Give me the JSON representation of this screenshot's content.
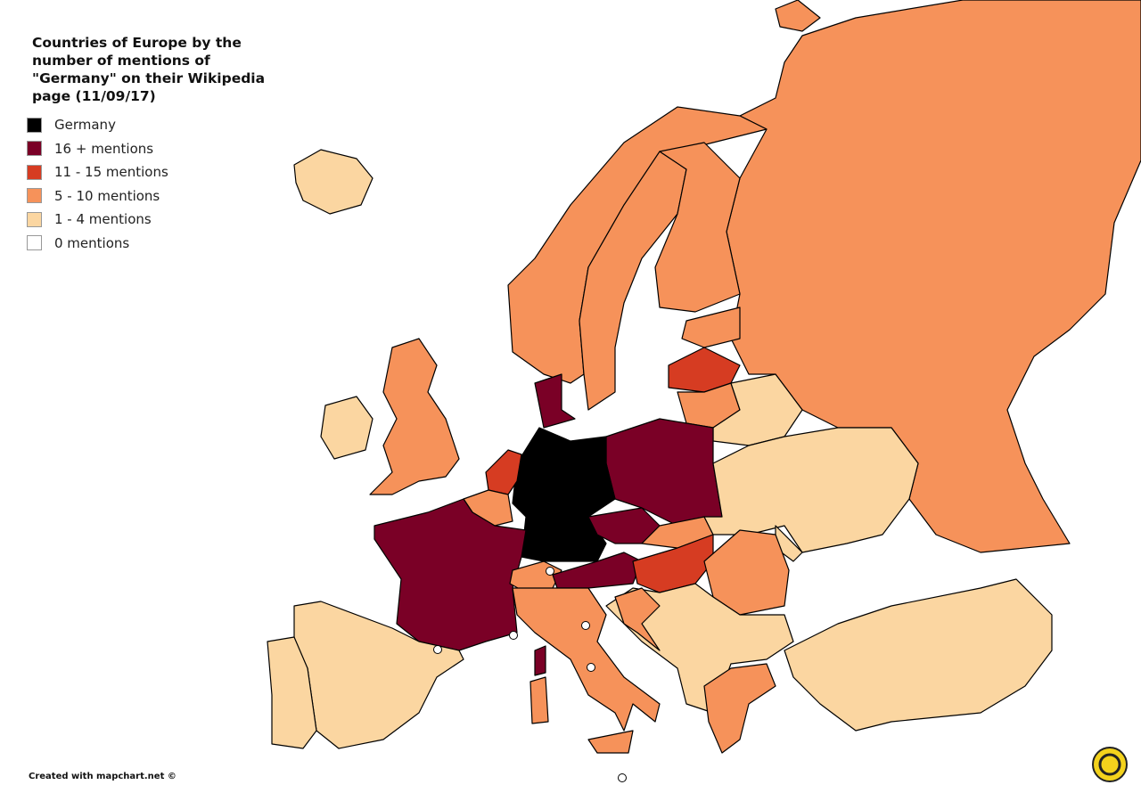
{
  "title": [
    "Countries of Europe by the",
    "number of mentions of",
    "\"Germany\" on their Wikipedia",
    "page (11/09/17)"
  ],
  "legend": [
    {
      "label": "Germany",
      "color": "#000000"
    },
    {
      "label": "16 + mentions",
      "color": "#7a0026"
    },
    {
      "label": "11 - 15 mentions",
      "color": "#d63c22"
    },
    {
      "label": "5 - 10 mentions",
      "color": "#f6925a"
    },
    {
      "label": "1 - 4 mentions",
      "color": "#fbd6a1"
    },
    {
      "label": "0 mentions",
      "color": "#ffffff"
    }
  ],
  "credit": "Created with mapchart.net ©"
}
